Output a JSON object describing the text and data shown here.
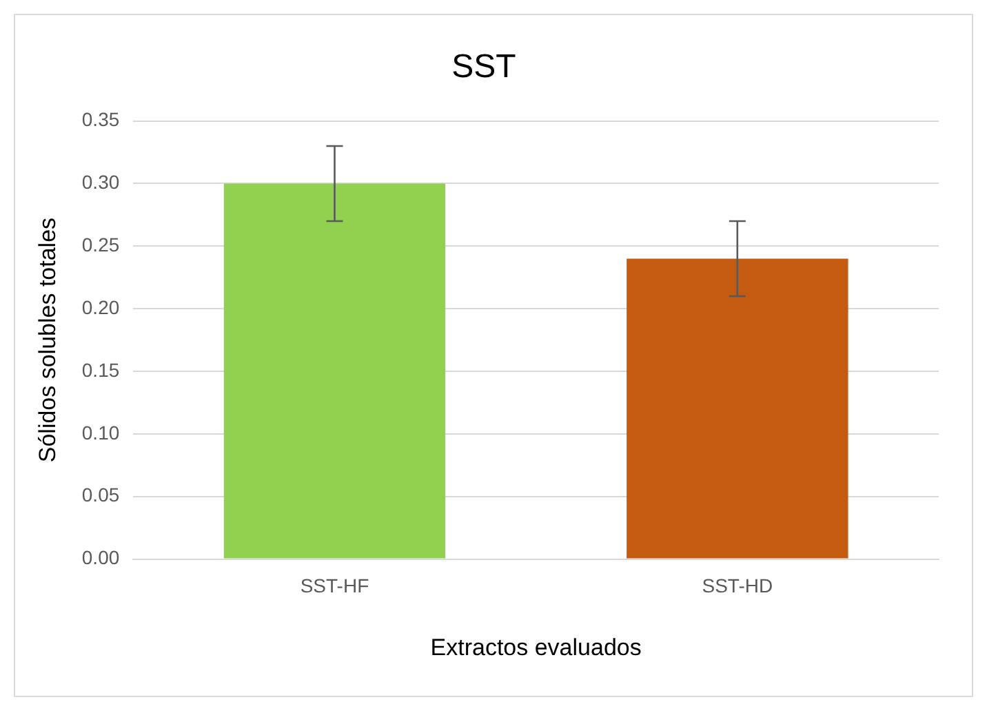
{
  "chart_data": {
    "type": "bar",
    "title": "SST",
    "xlabel": "Extractos evaluados",
    "ylabel": "Sólidos solubles totales",
    "categories": [
      "SST-HF",
      "SST-HD"
    ],
    "values": [
      0.3,
      0.24
    ],
    "colors": [
      "#92d050",
      "#c55a11"
    ],
    "errors": [
      0.03,
      0.03
    ],
    "ylim": [
      0,
      0.35
    ],
    "yticks": [
      {
        "value": 0,
        "label": "0.00"
      },
      {
        "value": 0.05,
        "label": "0.05"
      },
      {
        "value": 0.1,
        "label": "0.10"
      },
      {
        "value": 0.15,
        "label": "0.15"
      },
      {
        "value": 0.2,
        "label": "0.20"
      },
      {
        "value": 0.25,
        "label": "0.25"
      },
      {
        "value": 0.3,
        "label": "0.30"
      },
      {
        "value": 0.35,
        "label": "0.35"
      }
    ],
    "grid": "y"
  }
}
